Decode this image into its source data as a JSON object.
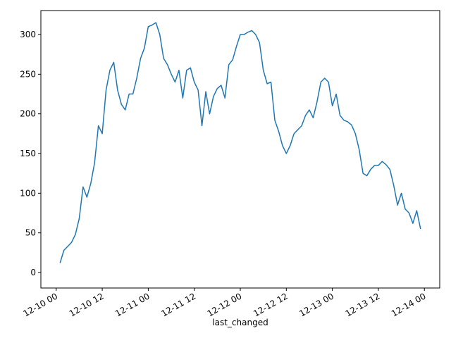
{
  "chart_data": {
    "type": "line",
    "x_label": "last_changed",
    "color": "#1f77b4",
    "x": [
      "12-10 01",
      "12-10 02",
      "12-10 03",
      "12-10 04",
      "12-10 05",
      "12-10 06",
      "12-10 07",
      "12-10 08",
      "12-10 09",
      "12-10 10",
      "12-10 11",
      "12-10 12",
      "12-10 13",
      "12-10 14",
      "12-10 15",
      "12-10 16",
      "12-10 17",
      "12-10 18",
      "12-10 19",
      "12-10 20",
      "12-10 21",
      "12-10 22",
      "12-10 23",
      "12-11 00",
      "12-11 01",
      "12-11 02",
      "12-11 03",
      "12-11 04",
      "12-11 05",
      "12-11 06",
      "12-11 07",
      "12-11 08",
      "12-11 09",
      "12-11 10",
      "12-11 11",
      "12-11 12",
      "12-11 13",
      "12-11 14",
      "12-11 15",
      "12-11 16",
      "12-11 17",
      "12-11 18",
      "12-11 19",
      "12-11 20",
      "12-11 21",
      "12-11 22",
      "12-11 23",
      "12-12 00",
      "12-12 01",
      "12-12 02",
      "12-12 03",
      "12-12 04",
      "12-12 05",
      "12-12 06",
      "12-12 07",
      "12-12 08",
      "12-12 09",
      "12-12 10",
      "12-12 11",
      "12-12 12",
      "12-12 13",
      "12-12 14",
      "12-12 15",
      "12-12 16",
      "12-12 17",
      "12-12 18",
      "12-12 19",
      "12-12 20",
      "12-12 21",
      "12-12 22",
      "12-12 23",
      "12-13 00",
      "12-13 01",
      "12-13 02",
      "12-13 03",
      "12-13 04",
      "12-13 05",
      "12-13 06",
      "12-13 07",
      "12-13 08",
      "12-13 09",
      "12-13 10",
      "12-13 11",
      "12-13 12",
      "12-13 13",
      "12-13 14",
      "12-13 15",
      "12-13 16",
      "12-13 17",
      "12-13 18",
      "12-13 19",
      "12-13 20",
      "12-13 21",
      "12-13 22",
      "12-13 23"
    ],
    "values": [
      12,
      28,
      33,
      38,
      48,
      68,
      108,
      95,
      112,
      138,
      185,
      175,
      230,
      255,
      265,
      230,
      212,
      205,
      225,
      225,
      245,
      270,
      283,
      310,
      312,
      315,
      300,
      270,
      262,
      250,
      240,
      255,
      220,
      255,
      258,
      240,
      230,
      185,
      228,
      200,
      222,
      232,
      236,
      220,
      262,
      268,
      285,
      300,
      300,
      303,
      305,
      300,
      290,
      255,
      238,
      240,
      192,
      178,
      160,
      150,
      160,
      175,
      180,
      185,
      198,
      205,
      195,
      215,
      240,
      245,
      240,
      210,
      225,
      198,
      192,
      190,
      186,
      175,
      155,
      125,
      122,
      130,
      135,
      135,
      140,
      136,
      130,
      110,
      85,
      100,
      80,
      75,
      62,
      78,
      55
    ],
    "xlim": [
      "12-09 20",
      "12-14 04"
    ],
    "xticks": [
      "12-10 00",
      "12-10 12",
      "12-11 00",
      "12-11 12",
      "12-12 00",
      "12-12 12",
      "12-13 00",
      "12-13 12",
      "12-14 00"
    ],
    "ylim": [
      -19.5,
      330.2
    ],
    "yticks": [
      0,
      50,
      100,
      150,
      200,
      250,
      300
    ]
  }
}
